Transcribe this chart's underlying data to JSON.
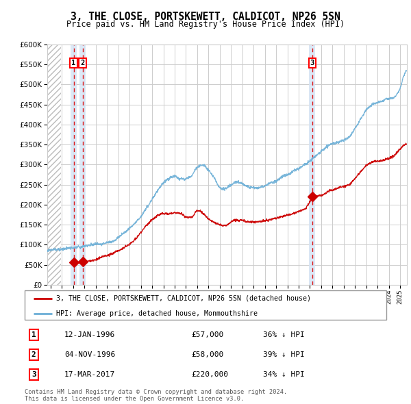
{
  "title": "3, THE CLOSE, PORTSKEWETT, CALDICOT, NP26 5SN",
  "subtitle": "Price paid vs. HM Land Registry's House Price Index (HPI)",
  "ylim": [
    0,
    600000
  ],
  "yticks": [
    0,
    50000,
    100000,
    150000,
    200000,
    250000,
    300000,
    350000,
    400000,
    450000,
    500000,
    550000,
    600000
  ],
  "xlim_start": 1993.7,
  "xlim_end": 2025.6,
  "hpi_color": "#6baed6",
  "price_color": "#cc0000",
  "dot_color": "#cc0000",
  "vline_color": "#dd0000",
  "shade_color": "#d6e4f5",
  "legend_label_price": "3, THE CLOSE, PORTSKEWETT, CALDICOT, NP26 5SN (detached house)",
  "legend_label_hpi": "HPI: Average price, detached house, Monmouthshire",
  "transactions": [
    {
      "num": 1,
      "date": "12-JAN-1996",
      "price": 57000,
      "year": 1996.04,
      "hpi_pct": "36% ↓ HPI"
    },
    {
      "num": 2,
      "date": "04-NOV-1996",
      "price": 58000,
      "year": 1996.84,
      "hpi_pct": "39% ↓ HPI"
    },
    {
      "num": 3,
      "date": "17-MAR-2017",
      "price": 220000,
      "year": 2017.21,
      "hpi_pct": "34% ↓ HPI"
    }
  ],
  "footnote": "Contains HM Land Registry data © Crown copyright and database right 2024.\nThis data is licensed under the Open Government Licence v3.0.",
  "background_color": "#ffffff",
  "grid_color": "#cccccc",
  "hatch_color": "#bbbbbb"
}
